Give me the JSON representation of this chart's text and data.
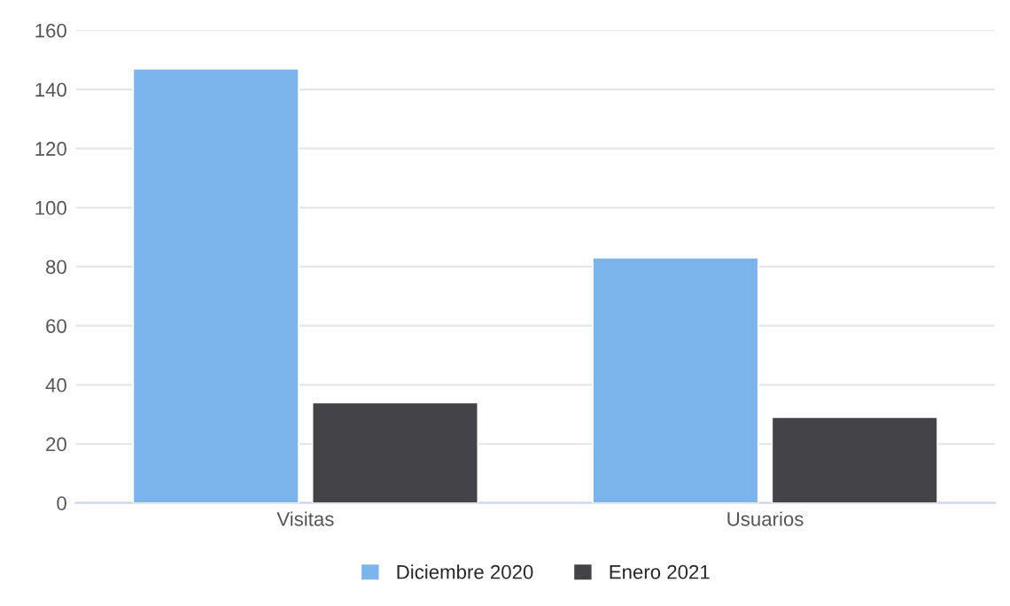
{
  "chart_data": {
    "type": "bar",
    "categories": [
      "Visitas",
      "Usuarios"
    ],
    "series": [
      {
        "name": "Diciembre 2020",
        "color": "#7cb5ec",
        "values": [
          147,
          83
        ]
      },
      {
        "name": "Enero 2021",
        "color": "#434348",
        "values": [
          34,
          29
        ]
      }
    ],
    "ylim": [
      0,
      160
    ],
    "yticks": [
      0,
      20,
      40,
      60,
      80,
      100,
      120,
      140,
      160
    ],
    "grid": "y",
    "legend": "bottom"
  }
}
